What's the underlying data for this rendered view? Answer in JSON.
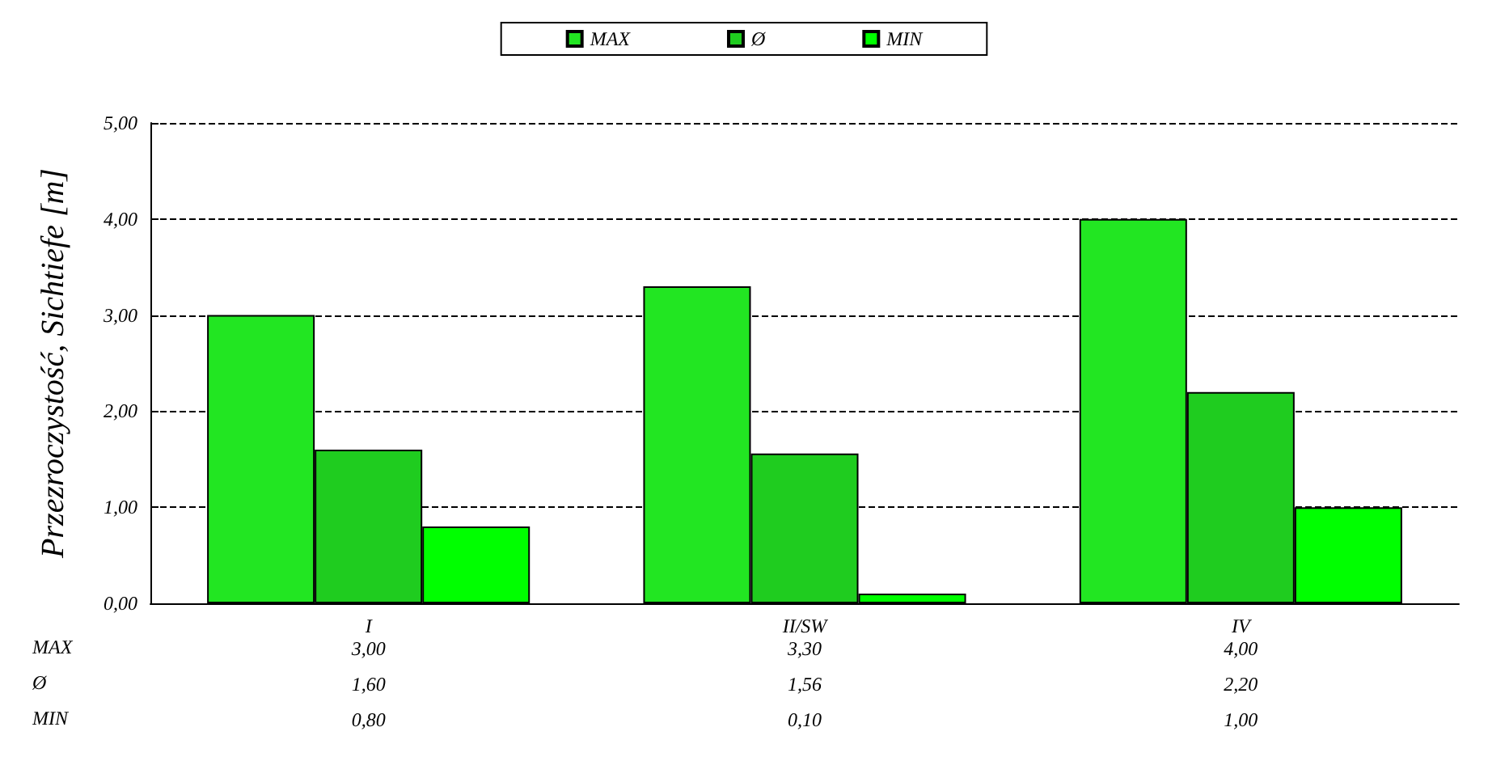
{
  "chart_data": {
    "type": "bar",
    "ylabel": "Przezroczystość, Sichtiefe [m]",
    "categories": [
      "I",
      "II/SW",
      "IV"
    ],
    "series": [
      {
        "name": "MAX",
        "color": "#22e622",
        "values": [
          3.0,
          3.3,
          4.0
        ],
        "value_labels": [
          "3,00",
          "3,30",
          "4,00"
        ]
      },
      {
        "name": "Ø",
        "color": "#1fcc1f",
        "values": [
          1.6,
          1.56,
          2.2
        ],
        "value_labels": [
          "1,60",
          "1,56",
          "2,20"
        ]
      },
      {
        "name": "MIN",
        "color": "#00ff00",
        "values": [
          0.8,
          0.1,
          1.0
        ],
        "value_labels": [
          "0,80",
          "0,10",
          "1,00"
        ]
      }
    ],
    "ylim": [
      0,
      5
    ],
    "yticks": [
      {
        "value": 0,
        "label": "0,00"
      },
      {
        "value": 1,
        "label": "1,00"
      },
      {
        "value": 2,
        "label": "2,00"
      },
      {
        "value": 3,
        "label": "3,00"
      },
      {
        "value": 4,
        "label": "4,00"
      },
      {
        "value": 5,
        "label": "5,00"
      }
    ],
    "grid": "y",
    "legend": "top"
  }
}
